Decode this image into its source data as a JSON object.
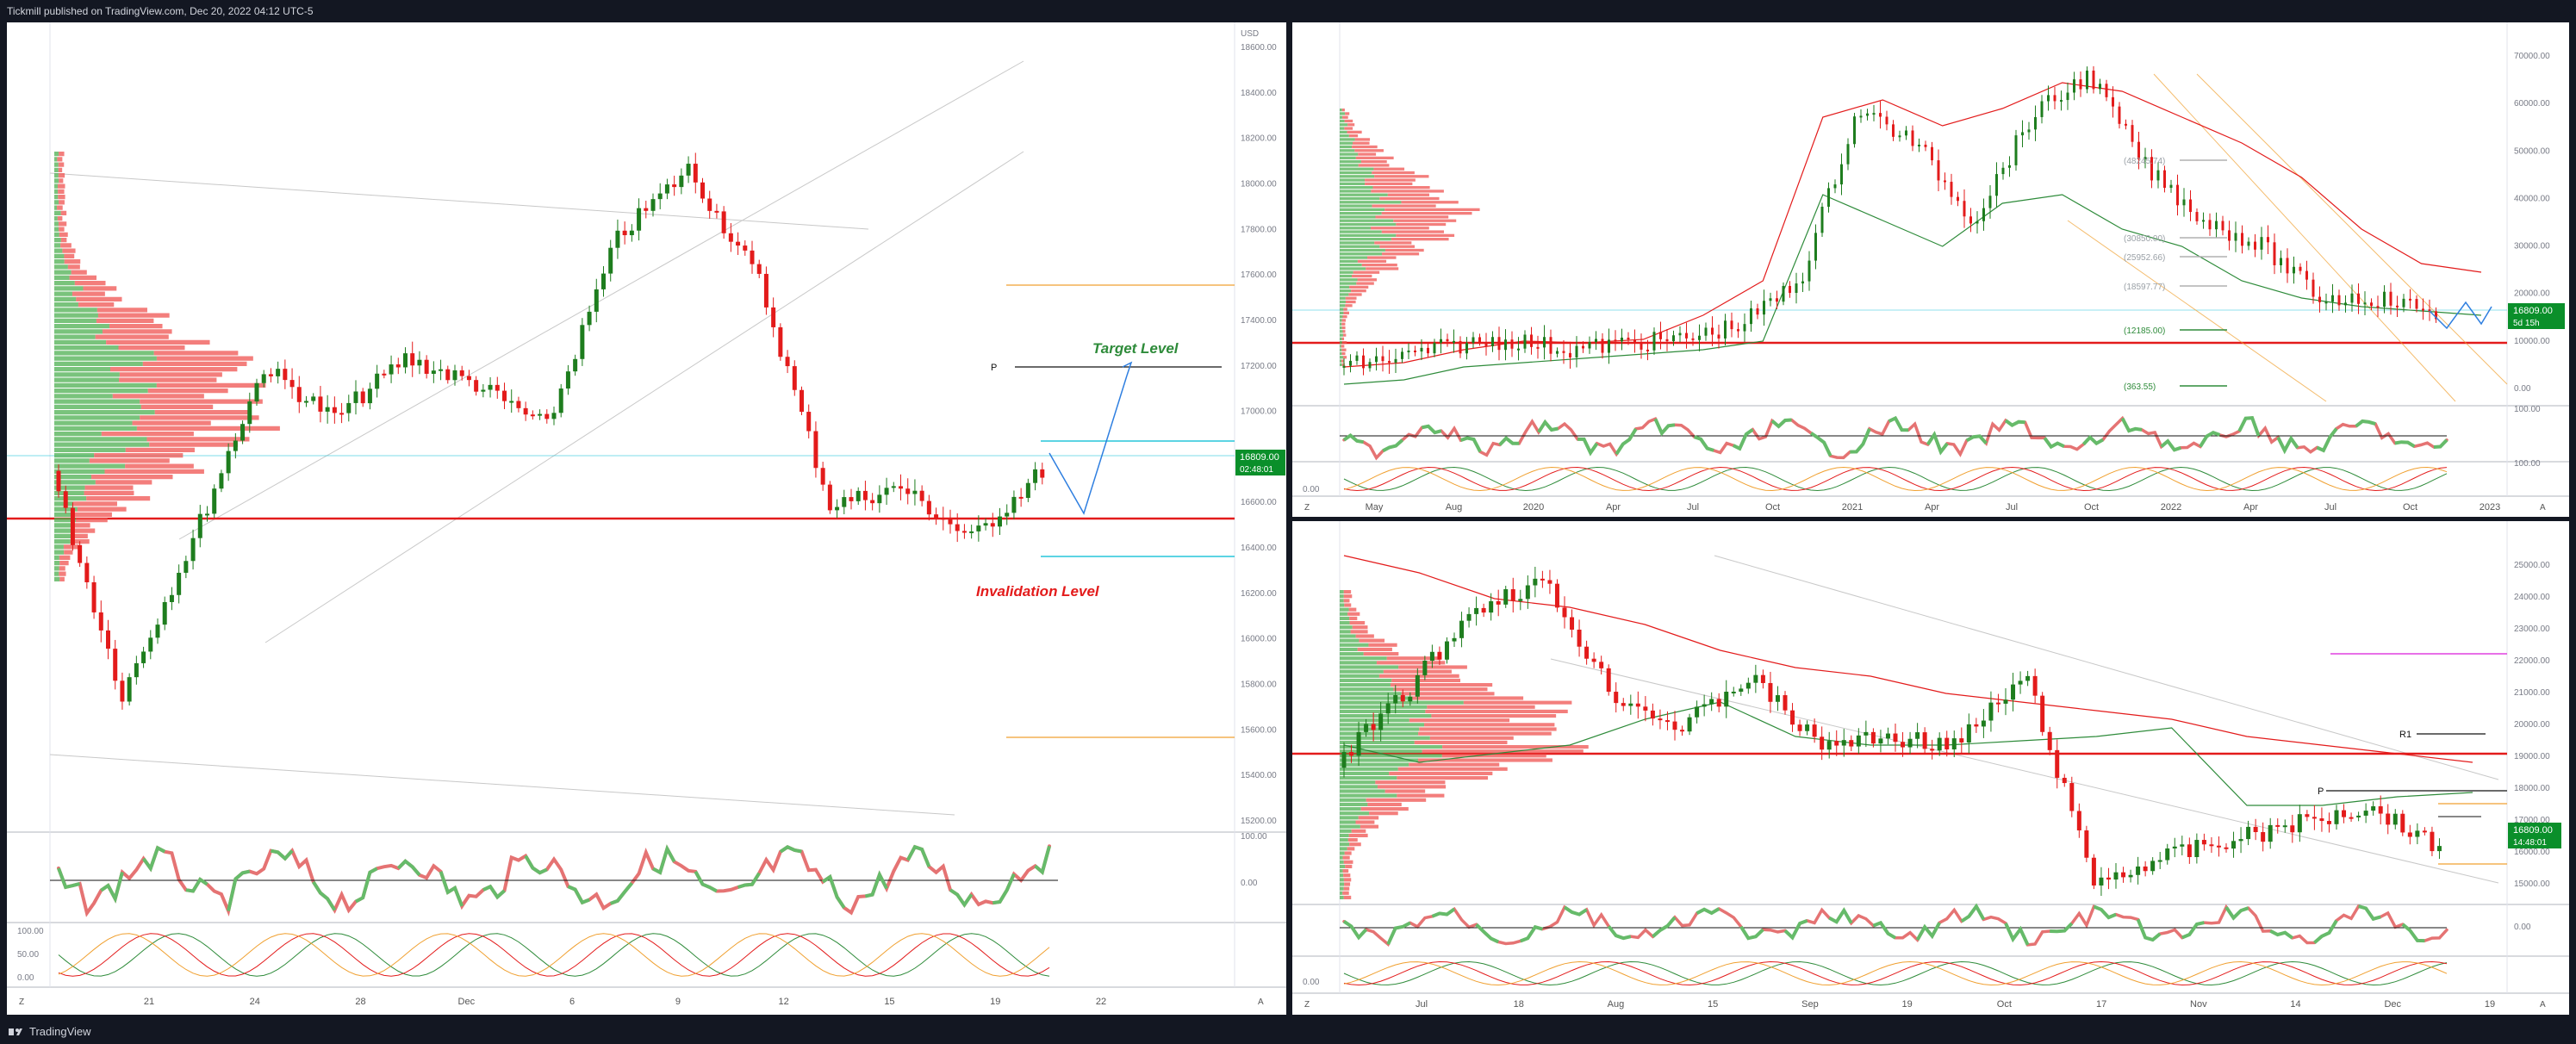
{
  "header": {
    "publisher_line": "Tickmill published on TradingView.com, Dec 20, 2022 04:12 UTC-5"
  },
  "footer": {
    "brand": "TradingView",
    "logo_icon": "tradingview-logo-icon"
  },
  "colors": {
    "up": "#1e7d1e",
    "down": "#e31b1b",
    "level_red": "#e31b1b",
    "target_green": "#2e8b3a",
    "price_tag": "#0a8f2a",
    "blue_path": "#2f7fe0",
    "orange": "#f0a030",
    "magenta": "#e040e0"
  },
  "left_panel": {
    "currency": "USD",
    "price_axis": [
      "18600.00",
      "18400.00",
      "18200.00",
      "18000.00",
      "17800.00",
      "17600.00",
      "17400.00",
      "17200.00",
      "17000.00",
      "16800.00",
      "16600.00",
      "16400.00",
      "16200.00",
      "16000.00",
      "15800.00",
      "15600.00",
      "15400.00",
      "15200.00"
    ],
    "price_tag": "16809.00",
    "countdown": "02:48:01",
    "target_label": "Target Level",
    "invalidation_label": "Invalidation Level",
    "pivot_label": "P",
    "rsi_axis": [
      "100.00",
      "0.00"
    ],
    "stoch_axis": [
      "100.00",
      "50.00",
      "0.00"
    ],
    "time_axis": [
      "21",
      "24",
      "28",
      "Dec",
      "6",
      "9",
      "12",
      "15",
      "19",
      "22"
    ],
    "scroll_left": "Z",
    "scroll_right": "A"
  },
  "tr_panel": {
    "price_axis": [
      "70000.00",
      "60000.00",
      "50000.00",
      "40000.00",
      "30000.00",
      "20000.00",
      "10000.00",
      "0.00"
    ],
    "price_tag": "16809.00",
    "countdown": "5d 15h",
    "levels": [
      "(48245.74)",
      "(30850.00)",
      "(25952.66)",
      "(18597.77)",
      "(12185.00)",
      "(363.55)"
    ],
    "rsi_axis": [
      "100.00",
      "100.00"
    ],
    "stoch_axis": [
      "0.00"
    ],
    "time_axis": [
      "May",
      "Aug",
      "2020",
      "Apr",
      "Jul",
      "Oct",
      "2021",
      "Apr",
      "Jul",
      "Oct",
      "2022",
      "Apr",
      "Jul",
      "Oct",
      "2023"
    ],
    "scroll_left": "Z",
    "scroll_right": "A"
  },
  "br_panel": {
    "price_axis": [
      "25000.00",
      "24000.00",
      "23000.00",
      "22000.00",
      "21000.00",
      "20000.00",
      "19000.00",
      "18000.00",
      "17000.00",
      "16000.00",
      "15000.00"
    ],
    "price_tag": "16809.00",
    "countdown": "14:48:01",
    "r1_label": "R1",
    "pivot_label": "P",
    "rsi_axis": [
      "0.00"
    ],
    "stoch_axis": [
      "0.00"
    ],
    "time_axis": [
      "Jul",
      "18",
      "Aug",
      "15",
      "Sep",
      "19",
      "Oct",
      "17",
      "Nov",
      "14",
      "Dec",
      "19"
    ],
    "scroll_left": "Z",
    "scroll_right": "A"
  }
}
